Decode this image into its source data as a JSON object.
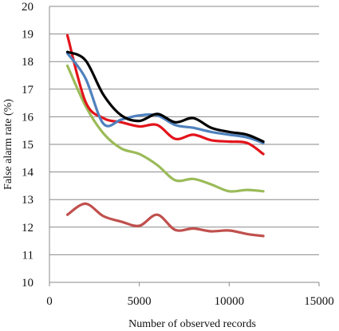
{
  "chart_data": {
    "type": "line",
    "title": "",
    "xlabel": "Number of observed records",
    "ylabel": "False alarm rate (%)",
    "xlim": [
      0,
      15000
    ],
    "ylim": [
      10,
      20
    ],
    "xticks": [
      0,
      5000,
      10000,
      15000
    ],
    "yticks": [
      10,
      11,
      12,
      13,
      14,
      15,
      16,
      17,
      18,
      19,
      20
    ],
    "grid": "horizontal",
    "legend": "none",
    "series": [
      {
        "color": "#000000",
        "x": [
          1000,
          2000,
          3000,
          4000,
          5000,
          6000,
          7000,
          8000,
          9000,
          10000,
          11000,
          11900
        ],
        "values": [
          18.35,
          18.05,
          16.8,
          16.05,
          15.85,
          16.1,
          15.8,
          15.95,
          15.6,
          15.45,
          15.35,
          15.1
        ]
      },
      {
        "color": "#4f81bd",
        "x": [
          1000,
          2000,
          3000,
          4000,
          5000,
          6000,
          7000,
          8000,
          9000,
          10000,
          11000,
          11900
        ],
        "values": [
          18.3,
          17.4,
          15.75,
          15.9,
          16.05,
          16.05,
          15.7,
          15.6,
          15.45,
          15.35,
          15.25,
          15.05
        ]
      },
      {
        "color": "#e3141b",
        "x": [
          1000,
          2000,
          3000,
          4000,
          5000,
          6000,
          7000,
          8000,
          9000,
          10000,
          11000,
          11900
        ],
        "values": [
          18.95,
          16.55,
          15.95,
          15.8,
          15.65,
          15.7,
          15.2,
          15.35,
          15.15,
          15.1,
          15.05,
          14.65
        ]
      },
      {
        "color": "#9bbb59",
        "x": [
          1000,
          2000,
          3000,
          4000,
          5000,
          6000,
          7000,
          8000,
          9000,
          10000,
          11000,
          11900
        ],
        "values": [
          17.85,
          16.4,
          15.4,
          14.85,
          14.65,
          14.25,
          13.7,
          13.75,
          13.55,
          13.3,
          13.35,
          13.3
        ]
      },
      {
        "color": "#c0504d",
        "x": [
          1000,
          2000,
          3000,
          4000,
          5000,
          6000,
          7000,
          8000,
          9000,
          10000,
          11000,
          11900
        ],
        "values": [
          12.45,
          12.85,
          12.4,
          12.2,
          12.05,
          12.45,
          11.9,
          11.95,
          11.85,
          11.88,
          11.75,
          11.68
        ]
      }
    ]
  }
}
